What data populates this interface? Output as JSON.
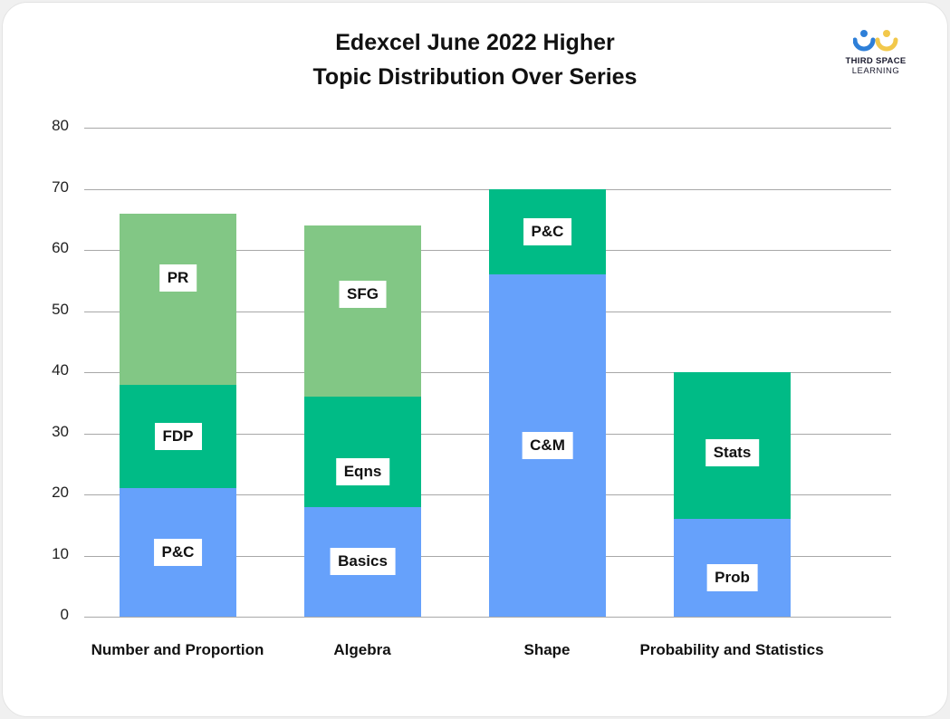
{
  "title_line1": "Edexcel June 2022 Higher",
  "title_line2": "Topic Distribution Over Series",
  "logo": {
    "line1": "THIRD SPACE",
    "line2": "LEARNING",
    "icon": "third-space-learning-logo-icon"
  },
  "colors": {
    "blue": "#66a1fb",
    "teal": "#00bb86",
    "lightgreen": "#82c785"
  },
  "y_ticks": [
    "0",
    "10",
    "20",
    "30",
    "40",
    "50",
    "60",
    "70",
    "80"
  ],
  "categories": [
    "Number and Proportion",
    "Algebra",
    "Shape",
    "Probability and Statistics"
  ],
  "chart_data": {
    "type": "bar",
    "stacked": true,
    "title": "Edexcel June 2022 Higher Topic Distribution Over Series",
    "xlabel": "",
    "ylabel": "",
    "ylim": [
      0,
      80
    ],
    "yticks": [
      0,
      10,
      20,
      30,
      40,
      50,
      60,
      70,
      80
    ],
    "grid": true,
    "legend": "none (segments labelled inline)",
    "categories": [
      "Number and Proportion",
      "Algebra",
      "Shape",
      "Probability and Statistics"
    ],
    "stacks": [
      {
        "category": "Number and Proportion",
        "segments": [
          {
            "label": "P&C",
            "value": 21,
            "color": "#66a1fb"
          },
          {
            "label": "FDP",
            "value": 17,
            "color": "#00bb86"
          },
          {
            "label": "PR",
            "value": 28,
            "color": "#82c785"
          }
        ],
        "total": 66
      },
      {
        "category": "Algebra",
        "segments": [
          {
            "label": "Basics",
            "value": 18,
            "color": "#66a1fb"
          },
          {
            "label": "Eqns",
            "value": 18,
            "color": "#00bb86"
          },
          {
            "label": "SFG",
            "value": 28,
            "color": "#82c785"
          }
        ],
        "total": 64
      },
      {
        "category": "Shape",
        "segments": [
          {
            "label": "C&M",
            "value": 56,
            "color": "#66a1fb"
          },
          {
            "label": "P&C",
            "value": 14,
            "color": "#00bb86"
          }
        ],
        "total": 70
      },
      {
        "category": "Probability and Statistics",
        "segments": [
          {
            "label": "Prob",
            "value": 16,
            "color": "#66a1fb"
          },
          {
            "label": "Stats",
            "value": 24,
            "color": "#00bb86"
          }
        ],
        "total": 40
      }
    ]
  }
}
